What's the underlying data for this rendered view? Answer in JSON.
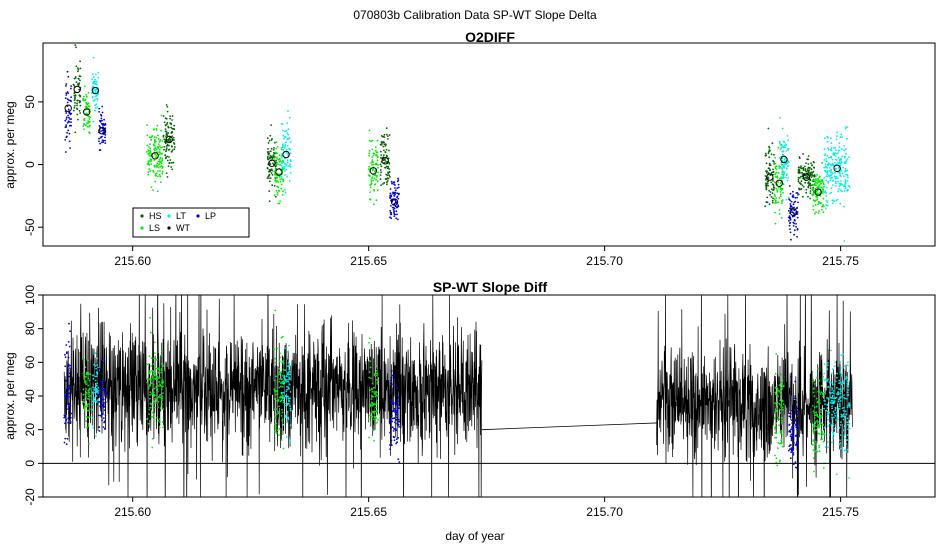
{
  "figure": {
    "suptitle": "070803b   Calibration Data SP-WT Slope Delta"
  },
  "colors": {
    "HS": "#006400",
    "LS": "#00ee00",
    "LT": "#00eeee",
    "WT": "#000000",
    "LP": "#0000dd",
    "trace": "#000000",
    "background": "#ffffff"
  },
  "chart_data": [
    {
      "type": "scatter",
      "title": "O2DIFF",
      "xlabel": "",
      "ylabel": "approx. per meg",
      "xlim": [
        215.581,
        215.77
      ],
      "ylim": [
        -65,
        97
      ],
      "xticks": [
        215.6,
        215.65,
        215.7,
        215.75
      ],
      "xtick_labels": [
        "215.60",
        "215.65",
        "215.70",
        "215.75"
      ],
      "yticks": [
        -50,
        0,
        50
      ],
      "ytick_labels": [
        "-50",
        "0",
        "50"
      ],
      "grid": false,
      "legend": {
        "position": "bottom-left",
        "entries": [
          {
            "label": "HS",
            "color": "#006400"
          },
          {
            "label": "LS",
            "color": "#00ee00"
          },
          {
            "label": "LT",
            "color": "#00eeee"
          },
          {
            "label": "WT",
            "color": "#000000"
          },
          {
            "label": "LP",
            "color": "#0000dd"
          }
        ]
      },
      "groups": [
        {
          "series": "LP",
          "x_start": 215.5857,
          "x_end": 215.587,
          "mean": 45,
          "sd": 14
        },
        {
          "series": "HS",
          "x_start": 215.5875,
          "x_end": 215.589,
          "mean": 60,
          "sd": 13
        },
        {
          "series": "LS",
          "x_start": 215.5895,
          "x_end": 215.591,
          "mean": 42,
          "sd": 11
        },
        {
          "series": "LT",
          "x_start": 215.5914,
          "x_end": 215.5928,
          "mean": 59,
          "sd": 9
        },
        {
          "series": "LP",
          "x_start": 215.5928,
          "x_end": 215.5943,
          "mean": 27,
          "sd": 7
        },
        {
          "series": "LS",
          "x_start": 215.603,
          "x_end": 215.6065,
          "mean": 7,
          "sd": 11
        },
        {
          "series": "HS",
          "x_start": 215.6065,
          "x_end": 215.609,
          "mean": 20,
          "sd": 12
        },
        {
          "series": "HS",
          "x_start": 215.6285,
          "x_end": 215.6305,
          "mean": 1,
          "sd": 12
        },
        {
          "series": "LS",
          "x_start": 215.63,
          "x_end": 215.632,
          "mean": -6,
          "sd": 10
        },
        {
          "series": "LT",
          "x_start": 215.6315,
          "x_end": 215.6335,
          "mean": 8,
          "sd": 13
        },
        {
          "series": "LS",
          "x_start": 215.65,
          "x_end": 215.652,
          "mean": -5,
          "sd": 14
        },
        {
          "series": "HS",
          "x_start": 215.6525,
          "x_end": 215.6545,
          "mean": 3,
          "sd": 13
        },
        {
          "series": "LP",
          "x_start": 215.6545,
          "x_end": 215.6565,
          "mean": -30,
          "sd": 8
        },
        {
          "series": "HS",
          "x_start": 215.734,
          "x_end": 215.736,
          "mean": -10,
          "sd": 13
        },
        {
          "series": "LS",
          "x_start": 215.736,
          "x_end": 215.738,
          "mean": -15,
          "sd": 12
        },
        {
          "series": "LT",
          "x_start": 215.737,
          "x_end": 215.739,
          "mean": 4,
          "sd": 12
        },
        {
          "series": "LP",
          "x_start": 215.739,
          "x_end": 215.741,
          "mean": -38,
          "sd": 9
        },
        {
          "series": "HS",
          "x_start": 215.741,
          "x_end": 215.7445,
          "mean": -10,
          "sd": 8
        },
        {
          "series": "LS",
          "x_start": 215.744,
          "x_end": 215.7465,
          "mean": -22,
          "sd": 9
        },
        {
          "series": "LT",
          "x_start": 215.7465,
          "x_end": 215.752,
          "mean": -3,
          "sd": 14
        }
      ]
    },
    {
      "type": "line",
      "title": "SP-WT Slope Diff",
      "xlabel": "day of year",
      "ylabel": "approx. per meg",
      "xlim": [
        215.581,
        215.77
      ],
      "ylim": [
        -20,
        100
      ],
      "xticks": [
        215.6,
        215.65,
        215.7,
        215.75
      ],
      "xtick_labels": [
        "215.60",
        "215.65",
        "215.70",
        "215.75"
      ],
      "yticks": [
        -20,
        0,
        20,
        40,
        60,
        80,
        100
      ],
      "ytick_labels": [
        "-20",
        "0",
        "20",
        "40",
        "60",
        "80",
        "100"
      ],
      "hline": 0,
      "grid": false,
      "trace_segments": [
        {
          "x_start": 215.5855,
          "x_end": 215.674,
          "mean": 45,
          "sd": 17
        },
        {
          "x_start": 215.711,
          "x_end": 215.7525,
          "mean": 35,
          "sd": 17
        }
      ],
      "gap_line": {
        "x": [
          215.674,
          215.711
        ],
        "y": [
          20,
          24
        ]
      },
      "overlay_groups": [
        {
          "series": "LP",
          "x_start": 215.5855,
          "x_end": 215.587,
          "mean": 40,
          "sd": 16
        },
        {
          "series": "LS",
          "x_start": 215.5895,
          "x_end": 215.591,
          "mean": 43,
          "sd": 12
        },
        {
          "series": "LT",
          "x_start": 215.5914,
          "x_end": 215.5928,
          "mean": 45,
          "sd": 10
        },
        {
          "series": "LP",
          "x_start": 215.5928,
          "x_end": 215.5943,
          "mean": 38,
          "sd": 10
        },
        {
          "series": "LS",
          "x_start": 215.603,
          "x_end": 215.6065,
          "mean": 45,
          "sd": 12
        },
        {
          "series": "LS",
          "x_start": 215.63,
          "x_end": 215.632,
          "mean": 40,
          "sd": 14
        },
        {
          "series": "LT",
          "x_start": 215.6315,
          "x_end": 215.6335,
          "mean": 42,
          "sd": 12
        },
        {
          "series": "LS",
          "x_start": 215.65,
          "x_end": 215.652,
          "mean": 38,
          "sd": 14
        },
        {
          "series": "LP",
          "x_start": 215.6545,
          "x_end": 215.6565,
          "mean": 30,
          "sd": 12
        },
        {
          "series": "LS",
          "x_start": 215.736,
          "x_end": 215.738,
          "mean": 30,
          "sd": 14
        },
        {
          "series": "LP",
          "x_start": 215.739,
          "x_end": 215.741,
          "mean": 20,
          "sd": 12
        },
        {
          "series": "LS",
          "x_start": 215.744,
          "x_end": 215.7465,
          "mean": 25,
          "sd": 14
        },
        {
          "series": "LT",
          "x_start": 215.7465,
          "x_end": 215.752,
          "mean": 35,
          "sd": 15
        }
      ]
    }
  ]
}
